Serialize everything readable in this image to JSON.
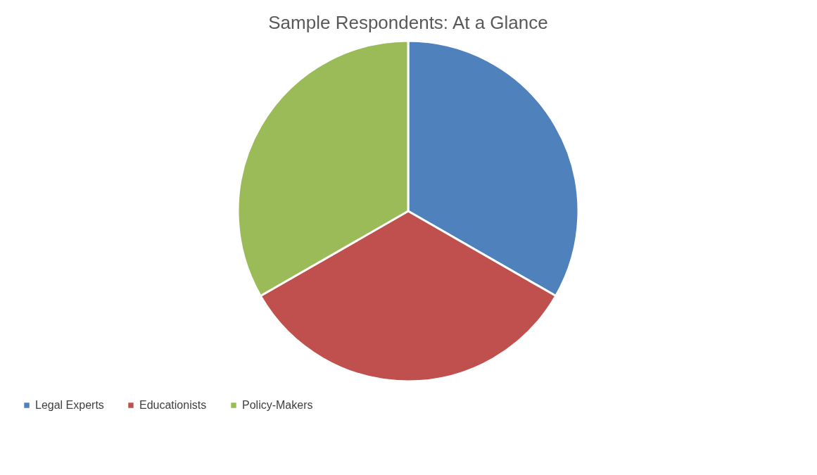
{
  "chart_data": {
    "type": "pie",
    "title": "Sample Respondents: At a Glance",
    "categories": [
      "Legal Experts",
      "Educationists",
      "Policy-Makers"
    ],
    "values": [
      33.3,
      33.4,
      33.3
    ],
    "colors": [
      "#4f81bd",
      "#c0504d",
      "#9bbb59"
    ],
    "legend": "bottom"
  }
}
